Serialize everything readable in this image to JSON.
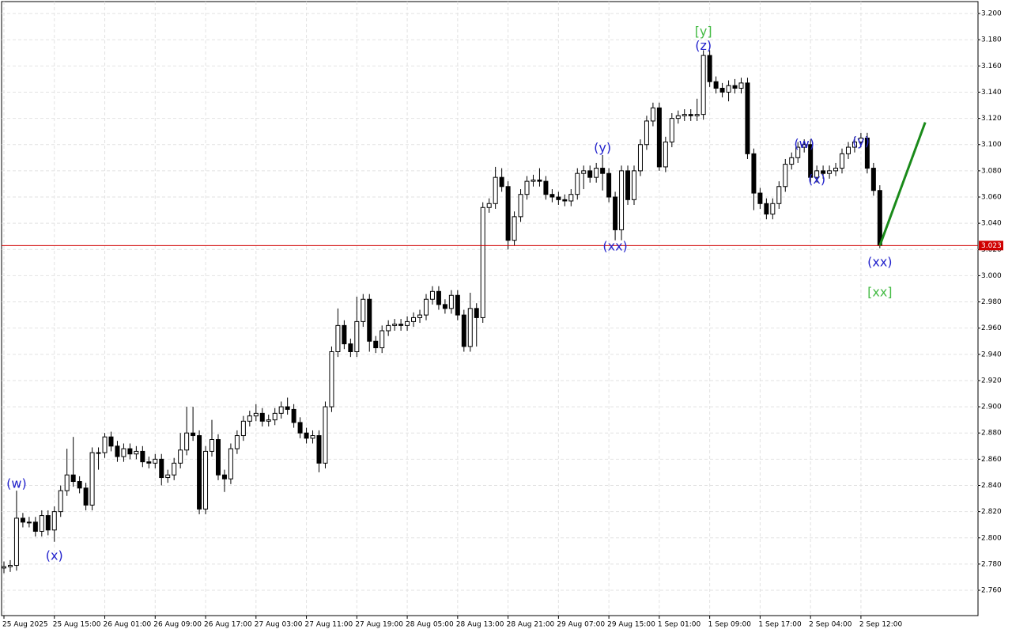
{
  "chart_data": {
    "type": "candlestick",
    "categories": [
      "25 Aug 2025",
      null,
      null,
      null,
      null,
      null,
      null,
      null,
      "25 Aug 15:00",
      null,
      null,
      null,
      null,
      null,
      null,
      null,
      "26 Aug 01:00",
      null,
      null,
      null,
      null,
      null,
      null,
      null,
      "26 Aug 09:00",
      null,
      null,
      null,
      null,
      null,
      null,
      null,
      "26 Aug 17:00",
      null,
      null,
      null,
      null,
      null,
      null,
      null,
      "27 Aug 03:00",
      null,
      null,
      null,
      null,
      null,
      null,
      null,
      "27 Aug 11:00",
      null,
      null,
      null,
      null,
      null,
      null,
      null,
      "27 Aug 19:00",
      null,
      null,
      null,
      null,
      null,
      null,
      null,
      "28 Aug 05:00",
      null,
      null,
      null,
      null,
      null,
      null,
      null,
      "28 Aug 13:00",
      null,
      null,
      null,
      null,
      null,
      null,
      null,
      "28 Aug 21:00",
      null,
      null,
      null,
      null,
      null,
      null,
      null,
      "29 Aug 07:00",
      null,
      null,
      null,
      null,
      null,
      null,
      null,
      "29 Aug 15:00",
      null,
      null,
      null,
      null,
      null,
      null,
      null,
      "1 Sep 01:00",
      null,
      null,
      null,
      null,
      null,
      null,
      null,
      "1 Sep 09:00",
      null,
      null,
      null,
      null,
      null,
      null,
      null,
      "1 Sep 17:00",
      null,
      null,
      null,
      null,
      null,
      null,
      null,
      "2 Sep 04:00",
      null,
      null,
      null,
      null,
      null,
      null,
      null,
      "2 Sep 12:00",
      null,
      null,
      null
    ],
    "open": [
      2.777,
      2.778,
      2.779,
      2.815,
      2.812,
      2.812,
      2.805,
      2.817,
      2.806,
      2.82,
      2.836,
      2.848,
      2.843,
      2.838,
      2.825,
      2.865,
      2.865,
      2.877,
      2.87,
      2.862,
      2.868,
      2.864,
      2.866,
      2.858,
      2.857,
      2.86,
      2.846,
      2.848,
      2.857,
      2.867,
      2.88,
      2.878,
      2.822,
      2.866,
      2.875,
      2.848,
      2.845,
      2.868,
      2.878,
      2.889,
      2.893,
      2.895,
      2.889,
      2.89,
      2.895,
      2.9,
      2.898,
      2.888,
      2.88,
      2.876,
      2.878,
      2.857,
      2.9,
      2.942,
      2.962,
      2.948,
      2.942,
      2.965,
      2.982,
      2.95,
      2.945,
      2.958,
      2.962,
      2.963,
      2.962,
      2.965,
      2.968,
      2.97,
      2.982,
      2.988,
      2.978,
      2.975,
      2.985,
      2.97,
      2.946,
      2.975,
      2.968,
      3.052,
      3.055,
      3.075,
      3.068,
      3.027,
      3.045,
      3.062,
      3.072,
      3.073,
      3.072,
      3.062,
      3.06,
      3.058,
      3.057,
      3.062,
      3.078,
      3.08,
      3.075,
      3.082,
      3.078,
      3.06,
      3.035,
      3.08,
      3.058,
      3.08,
      3.1,
      3.118,
      3.128,
      3.083,
      3.102,
      3.12,
      3.122,
      3.123,
      3.122,
      3.123,
      3.168,
      3.148,
      3.143,
      3.14,
      3.145,
      3.143,
      3.147,
      3.093,
      3.063,
      3.055,
      3.047,
      3.055,
      3.068,
      3.085,
      3.09,
      3.098,
      3.1,
      3.075,
      3.08,
      3.078,
      3.08,
      3.082,
      3.093,
      3.098,
      3.102,
      3.105,
      3.082,
      3.065
    ],
    "high": [
      2.782,
      2.783,
      2.836,
      2.819,
      2.816,
      2.816,
      2.821,
      2.821,
      2.824,
      2.84,
      2.868,
      2.877,
      2.847,
      2.842,
      2.869,
      2.869,
      2.88,
      2.881,
      2.874,
      2.872,
      2.872,
      2.87,
      2.87,
      2.862,
      2.864,
      2.864,
      2.852,
      2.861,
      2.88,
      2.9,
      2.9,
      2.882,
      2.87,
      2.89,
      2.879,
      2.852,
      2.872,
      2.882,
      2.893,
      2.897,
      2.902,
      2.899,
      2.894,
      2.899,
      2.904,
      2.907,
      2.902,
      2.892,
      2.884,
      2.882,
      2.882,
      2.904,
      2.946,
      2.975,
      2.966,
      2.952,
      2.984,
      2.986,
      2.986,
      2.954,
      2.962,
      2.966,
      2.967,
      2.967,
      2.969,
      2.972,
      2.974,
      2.986,
      2.992,
      2.992,
      2.982,
      2.989,
      2.989,
      2.974,
      2.987,
      2.979,
      3.056,
      3.059,
      3.083,
      3.082,
      3.072,
      3.049,
      3.066,
      3.076,
      3.077,
      3.082,
      3.076,
      3.066,
      3.064,
      3.062,
      3.066,
      3.082,
      3.084,
      3.084,
      3.086,
      3.092,
      3.082,
      3.064,
      3.084,
      3.084,
      3.084,
      3.104,
      3.122,
      3.132,
      3.132,
      3.106,
      3.124,
      3.126,
      3.127,
      3.127,
      3.135,
      3.172,
      3.172,
      3.152,
      3.147,
      3.149,
      3.15,
      3.151,
      3.151,
      3.097,
      3.067,
      3.059,
      3.059,
      3.072,
      3.089,
      3.094,
      3.102,
      3.104,
      3.104,
      3.084,
      3.084,
      3.084,
      3.086,
      3.097,
      3.102,
      3.106,
      3.109,
      3.109,
      3.086,
      3.069
    ],
    "low": [
      2.773,
      2.774,
      2.775,
      2.808,
      2.808,
      2.801,
      2.801,
      2.802,
      2.797,
      2.816,
      2.832,
      2.839,
      2.834,
      2.821,
      2.821,
      2.852,
      2.861,
      2.866,
      2.858,
      2.858,
      2.86,
      2.86,
      2.854,
      2.853,
      2.853,
      2.84,
      2.842,
      2.844,
      2.853,
      2.863,
      2.874,
      2.818,
      2.818,
      2.862,
      2.844,
      2.835,
      2.841,
      2.864,
      2.874,
      2.885,
      2.889,
      2.885,
      2.885,
      2.886,
      2.891,
      2.894,
      2.884,
      2.876,
      2.872,
      2.872,
      2.85,
      2.853,
      2.896,
      2.938,
      2.944,
      2.938,
      2.938,
      2.961,
      2.942,
      2.941,
      2.941,
      2.954,
      2.958,
      2.958,
      2.958,
      2.961,
      2.964,
      2.966,
      2.978,
      2.974,
      2.971,
      2.971,
      2.966,
      2.942,
      2.942,
      2.946,
      2.964,
      3.048,
      3.051,
      3.064,
      3.02,
      3.023,
      3.041,
      3.058,
      3.068,
      3.068,
      3.058,
      3.056,
      3.054,
      3.053,
      3.053,
      3.058,
      3.066,
      3.071,
      3.071,
      3.065,
      3.056,
      3.027,
      3.027,
      3.054,
      3.054,
      3.076,
      3.096,
      3.114,
      3.08,
      3.079,
      3.098,
      3.116,
      3.118,
      3.118,
      3.118,
      3.119,
      3.144,
      3.139,
      3.136,
      3.133,
      3.139,
      3.139,
      3.089,
      3.05,
      3.051,
      3.043,
      3.043,
      3.051,
      3.064,
      3.081,
      3.086,
      3.094,
      3.071,
      3.071,
      3.074,
      3.074,
      3.076,
      3.078,
      3.089,
      3.094,
      3.098,
      3.078,
      3.061,
      3.021
    ],
    "close": [
      2.778,
      2.779,
      2.815,
      2.812,
      2.812,
      2.805,
      2.817,
      2.806,
      2.82,
      2.836,
      2.848,
      2.843,
      2.838,
      2.825,
      2.865,
      2.865,
      2.877,
      2.87,
      2.862,
      2.868,
      2.864,
      2.866,
      2.858,
      2.857,
      2.86,
      2.846,
      2.848,
      2.857,
      2.867,
      2.88,
      2.878,
      2.822,
      2.866,
      2.875,
      2.848,
      2.845,
      2.868,
      2.878,
      2.889,
      2.893,
      2.895,
      2.889,
      2.89,
      2.895,
      2.9,
      2.898,
      2.888,
      2.88,
      2.876,
      2.878,
      2.857,
      2.9,
      2.942,
      2.962,
      2.948,
      2.942,
      2.965,
      2.982,
      2.95,
      2.945,
      2.958,
      2.962,
      2.963,
      2.962,
      2.965,
      2.968,
      2.97,
      2.982,
      2.988,
      2.978,
      2.975,
      2.985,
      2.97,
      2.946,
      2.975,
      2.968,
      3.052,
      3.055,
      3.075,
      3.068,
      3.027,
      3.045,
      3.062,
      3.072,
      3.073,
      3.072,
      3.062,
      3.06,
      3.058,
      3.057,
      3.062,
      3.078,
      3.08,
      3.075,
      3.082,
      3.078,
      3.06,
      3.035,
      3.08,
      3.058,
      3.08,
      3.1,
      3.118,
      3.128,
      3.083,
      3.102,
      3.12,
      3.122,
      3.123,
      3.122,
      3.123,
      3.168,
      3.148,
      3.143,
      3.14,
      3.145,
      3.143,
      3.147,
      3.093,
      3.063,
      3.055,
      3.047,
      3.055,
      3.068,
      3.085,
      3.09,
      3.098,
      3.1,
      3.075,
      3.08,
      3.078,
      3.08,
      3.082,
      3.093,
      3.098,
      3.102,
      3.105,
      3.082,
      3.065,
      3.023
    ],
    "up_color": "#ffffff",
    "down_color": "#000000",
    "ylim": [
      2.7407,
      3.2091
    ],
    "yticks": [
      {
        "value": 2.76,
        "label": "2.760"
      },
      {
        "value": 2.78,
        "label": "2.780"
      },
      {
        "value": 2.8,
        "label": "2.800"
      },
      {
        "value": 2.82,
        "label": "2.820"
      },
      {
        "value": 2.84,
        "label": "2.840"
      },
      {
        "value": 2.86,
        "label": "2.860"
      },
      {
        "value": 2.88,
        "label": "2.880"
      },
      {
        "value": 2.9,
        "label": "2.900"
      },
      {
        "value": 2.92,
        "label": "2.920"
      },
      {
        "value": 2.94,
        "label": "2.940"
      },
      {
        "value": 2.96,
        "label": "2.960"
      },
      {
        "value": 2.98,
        "label": "2.980"
      },
      {
        "value": 3.0,
        "label": "3.000"
      },
      {
        "value": 3.02,
        "label": "3.020"
      },
      {
        "value": 3.04,
        "label": "3.040"
      },
      {
        "value": 3.06,
        "label": "3.060"
      },
      {
        "value": 3.08,
        "label": "3.080"
      },
      {
        "value": 3.1,
        "label": "3.100"
      },
      {
        "value": 3.12,
        "label": "3.120"
      },
      {
        "value": 3.14,
        "label": "3.140"
      },
      {
        "value": 3.16,
        "label": "3.160"
      },
      {
        "value": 3.18,
        "label": "3.180"
      },
      {
        "value": 3.2,
        "label": "3.200"
      }
    ],
    "grid": true,
    "last_price": {
      "value": 3.023,
      "label": "3.023",
      "color": "#d00000"
    },
    "annotations": [
      {
        "text": "(w)",
        "index": 2,
        "price": 2.841,
        "color": "#2222cc"
      },
      {
        "text": "(x)",
        "index": 8,
        "price": 2.786,
        "color": "#2222cc"
      },
      {
        "text": "(y)",
        "index": 95,
        "price": 3.097,
        "color": "#2222cc"
      },
      {
        "text": "(xx)",
        "index": 97,
        "price": 3.022,
        "color": "#2222cc"
      },
      {
        "text": "[y]",
        "index": 111,
        "price": 3.186,
        "color": "#44bb44"
      },
      {
        "text": "(z)",
        "index": 111,
        "price": 3.175,
        "color": "#2222cc"
      },
      {
        "text": "(w)",
        "index": 127,
        "price": 3.1,
        "color": "#2222cc"
      },
      {
        "text": "(x)",
        "index": 129,
        "price": 3.073,
        "color": "#2222cc"
      },
      {
        "text": "(y)",
        "index": 136,
        "price": 3.102,
        "color": "#2222cc"
      },
      {
        "text": "(xx)",
        "index": 139,
        "price": 3.01,
        "color": "#2222cc"
      },
      {
        "text": "[xx]",
        "index": 139,
        "price": 2.987,
        "color": "#44bb44"
      }
    ],
    "forecast_line": {
      "index": [
        139,
        146.2
      ],
      "price": [
        3.023,
        3.117
      ],
      "color": "#1a8a1a"
    }
  }
}
